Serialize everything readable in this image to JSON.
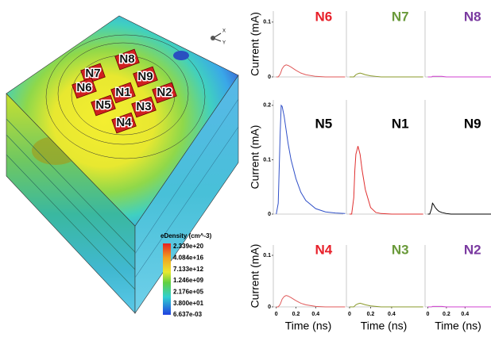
{
  "device": {
    "node_labels": [
      "N8",
      "N7",
      "N9",
      "N6",
      "N1",
      "N2",
      "N5",
      "N3",
      "N4"
    ],
    "axis_labels": [
      "X",
      "Y"
    ],
    "legend": {
      "title": "eDensity (cm^-3)",
      "labels": [
        "2.339e+20",
        "4.084e+16",
        "7.133e+12",
        "1.246e+09",
        "2.176e+05",
        "3.800e+01",
        "6.637e-03"
      ]
    }
  },
  "chart_data": [
    {
      "type": "line",
      "title": "N6",
      "title_color": "#e8202a",
      "ylabel": "Current (mA)",
      "x": [
        0,
        0.02,
        0.04,
        0.05,
        0.06,
        0.08,
        0.1,
        0.12,
        0.15,
        0.2,
        0.25,
        0.3,
        0.4,
        0.5,
        0.6,
        0.7
      ],
      "series": [
        {
          "color": "#e05a5a",
          "values": [
            0,
            0,
            0.005,
            0.01,
            0.015,
            0.02,
            0.022,
            0.021,
            0.018,
            0.012,
            0.007,
            0.004,
            0.001,
            0,
            0,
            0
          ]
        }
      ],
      "xlim": [
        -0.03,
        0.68
      ],
      "ylim": [
        0,
        0.12
      ],
      "yticks": [
        0,
        0.1
      ]
    },
    {
      "type": "line",
      "title": "N7",
      "title_color": "#6a9a3a",
      "x": [
        0,
        0.02,
        0.04,
        0.05,
        0.06,
        0.08,
        0.1,
        0.12,
        0.15,
        0.2,
        0.25,
        0.3,
        0.4,
        0.5,
        0.6,
        0.7
      ],
      "series": [
        {
          "color": "#8a9a2a",
          "values": [
            0,
            0,
            0,
            0.002,
            0.004,
            0.006,
            0.007,
            0.006,
            0.004,
            0.002,
            0.001,
            0,
            0,
            0,
            0,
            0
          ]
        }
      ],
      "xlim": [
        -0.03,
        0.68
      ],
      "ylim": [
        0,
        0.12
      ]
    },
    {
      "type": "line",
      "title": "N8",
      "title_color": "#7a3aa0",
      "x": [
        0,
        0.02,
        0.04,
        0.05,
        0.06,
        0.08,
        0.1,
        0.12,
        0.15,
        0.2,
        0.25,
        0.3,
        0.4,
        0.5,
        0.6,
        0.7
      ],
      "series": [
        {
          "color": "#d040d0",
          "values": [
            0,
            0,
            0,
            0.001,
            0.001,
            0.001,
            0.001,
            0.001,
            0.001,
            0,
            0,
            0,
            0,
            0,
            0,
            0
          ]
        }
      ],
      "xlim": [
        -0.03,
        0.68
      ],
      "ylim": [
        0,
        0.12
      ]
    },
    {
      "type": "line",
      "title": "N5",
      "title_color": "#000000",
      "ylabel": "Current (mA)",
      "x": [
        0,
        0.02,
        0.04,
        0.05,
        0.06,
        0.08,
        0.1,
        0.12,
        0.15,
        0.2,
        0.25,
        0.3,
        0.4,
        0.5,
        0.6,
        0.7
      ],
      "series": [
        {
          "color": "#3050c8",
          "values": [
            0,
            0.02,
            0.15,
            0.2,
            0.198,
            0.18,
            0.155,
            0.13,
            0.1,
            0.065,
            0.04,
            0.025,
            0.01,
            0.004,
            0.002,
            0.001
          ]
        }
      ],
      "xlim": [
        -0.03,
        0.68
      ],
      "ylim": [
        0,
        0.21
      ],
      "yticks": [
        0,
        0.1,
        0.2
      ]
    },
    {
      "type": "line",
      "title": "N1",
      "title_color": "#000000",
      "x": [
        0,
        0.02,
        0.04,
        0.05,
        0.06,
        0.08,
        0.1,
        0.12,
        0.15,
        0.2,
        0.25,
        0.3,
        0.4,
        0.5,
        0.6,
        0.7
      ],
      "series": [
        {
          "color": "#e03030",
          "values": [
            0,
            0,
            0.03,
            0.08,
            0.11,
            0.125,
            0.11,
            0.08,
            0.045,
            0.012,
            0.003,
            0.001,
            0,
            0,
            0,
            0
          ]
        }
      ],
      "xlim": [
        -0.03,
        0.68
      ],
      "ylim": [
        0,
        0.21
      ]
    },
    {
      "type": "line",
      "title": "N9",
      "title_color": "#000000",
      "x": [
        0,
        0.02,
        0.04,
        0.05,
        0.06,
        0.08,
        0.1,
        0.12,
        0.15,
        0.2,
        0.25,
        0.3,
        0.4,
        0.5,
        0.6,
        0.7
      ],
      "series": [
        {
          "color": "#000000",
          "values": [
            0,
            0,
            0.01,
            0.02,
            0.018,
            0.012,
            0.008,
            0.005,
            0.003,
            0.001,
            0,
            0,
            0,
            0,
            0,
            0
          ]
        }
      ],
      "xlim": [
        -0.03,
        0.68
      ],
      "ylim": [
        0,
        0.21
      ]
    },
    {
      "type": "line",
      "title": "N4",
      "title_color": "#e8202a",
      "ylabel": "Current (mA)",
      "xlabel": "Time (ns)",
      "x": [
        0,
        0.02,
        0.04,
        0.05,
        0.06,
        0.08,
        0.1,
        0.12,
        0.15,
        0.2,
        0.25,
        0.3,
        0.4,
        0.5,
        0.6,
        0.7
      ],
      "series": [
        {
          "color": "#e05a5a",
          "values": [
            0,
            0,
            0.005,
            0.01,
            0.015,
            0.02,
            0.022,
            0.021,
            0.018,
            0.012,
            0.007,
            0.004,
            0.001,
            0,
            0,
            0
          ]
        }
      ],
      "xlim": [
        -0.03,
        0.68
      ],
      "ylim": [
        0,
        0.12
      ],
      "yticks": [
        0,
        0.1
      ],
      "xticks": [
        0,
        0.2,
        0.4
      ]
    },
    {
      "type": "line",
      "title": "N3",
      "title_color": "#6a9a3a",
      "xlabel": "Time (ns)",
      "x": [
        0,
        0.02,
        0.04,
        0.05,
        0.06,
        0.08,
        0.1,
        0.12,
        0.15,
        0.2,
        0.25,
        0.3,
        0.4,
        0.5,
        0.6,
        0.7
      ],
      "series": [
        {
          "color": "#8a9a2a",
          "values": [
            0,
            0,
            0,
            0.002,
            0.004,
            0.006,
            0.007,
            0.006,
            0.004,
            0.002,
            0.001,
            0,
            0,
            0,
            0,
            0
          ]
        }
      ],
      "xlim": [
        -0.03,
        0.68
      ],
      "ylim": [
        0,
        0.12
      ],
      "xticks": [
        0,
        0.2,
        0.4
      ]
    },
    {
      "type": "line",
      "title": "N2",
      "title_color": "#7a3aa0",
      "xlabel": "Time (ns)",
      "x": [
        0,
        0.02,
        0.04,
        0.05,
        0.06,
        0.08,
        0.1,
        0.12,
        0.15,
        0.2,
        0.25,
        0.3,
        0.4,
        0.5,
        0.6,
        0.7
      ],
      "series": [
        {
          "color": "#d040d0",
          "values": [
            0,
            0,
            0,
            0.001,
            0.001,
            0.001,
            0.001,
            0.001,
            0.001,
            0,
            0,
            0,
            0,
            0,
            0,
            0
          ]
        }
      ],
      "xlim": [
        -0.03,
        0.68
      ],
      "ylim": [
        0,
        0.12
      ],
      "xticks": [
        0,
        0.2,
        0.4
      ]
    }
  ]
}
